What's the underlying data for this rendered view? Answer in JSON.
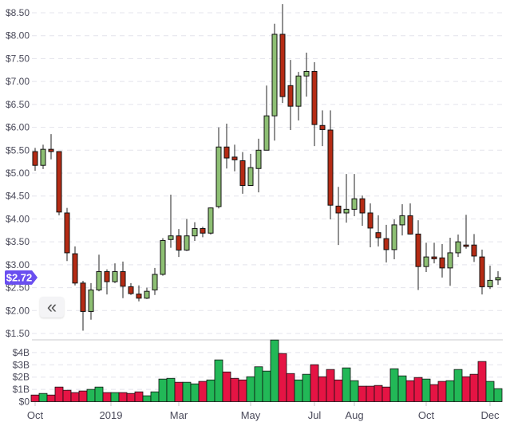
{
  "chart_data": {
    "type": "candlestick",
    "price_axis": {
      "ticks": [
        "$8.50",
        "$8.00",
        "$7.50",
        "$7.00",
        "$6.50",
        "$6.00",
        "$5.50",
        "$5.00",
        "$4.50",
        "$4.00",
        "$3.50",
        "$3.00",
        "$2.50",
        "$2.00",
        "$1.50"
      ],
      "ylim": [
        1.5,
        8.5
      ],
      "grid": true
    },
    "volume_axis": {
      "ticks": [
        "$4B",
        "$3B",
        "$2B",
        "$1B",
        "$0"
      ],
      "unit": "B"
    },
    "x_ticks": [
      {
        "label": "Oct",
        "at_index": 0
      },
      {
        "label": "2019",
        "at_index": 9.5
      },
      {
        "label": "Mar",
        "at_index": 18
      },
      {
        "label": "May",
        "at_index": 27
      },
      {
        "label": "Jul",
        "at_index": 35
      },
      {
        "label": "Aug",
        "at_index": 40
      },
      {
        "label": "Oct",
        "at_index": 49
      },
      {
        "label": "Dec",
        "at_index": 57
      }
    ],
    "candles": [
      [
        5.47,
        5.55,
        5.05,
        5.17
      ],
      [
        5.17,
        5.62,
        5.09,
        5.52
      ],
      [
        5.52,
        5.85,
        5.3,
        5.47
      ],
      [
        5.47,
        5.47,
        4.08,
        4.15
      ],
      [
        4.13,
        4.24,
        3.08,
        3.26
      ],
      [
        3.24,
        3.4,
        2.55,
        2.6
      ],
      [
        2.6,
        2.65,
        1.56,
        1.98
      ],
      [
        1.98,
        2.6,
        1.8,
        2.45
      ],
      [
        2.45,
        3.22,
        2.42,
        2.85
      ],
      [
        2.85,
        2.9,
        2.35,
        2.63
      ],
      [
        2.63,
        3.03,
        2.6,
        2.85
      ],
      [
        2.85,
        3.07,
        2.27,
        2.53
      ],
      [
        2.52,
        2.6,
        2.34,
        2.37
      ],
      [
        2.36,
        2.55,
        2.2,
        2.27
      ],
      [
        2.27,
        2.5,
        2.25,
        2.42
      ],
      [
        2.45,
        2.93,
        2.34,
        2.79
      ],
      [
        2.79,
        3.58,
        2.76,
        3.53
      ],
      [
        3.55,
        4.53,
        3.37,
        3.63
      ],
      [
        3.63,
        3.78,
        3.17,
        3.32
      ],
      [
        3.32,
        4.0,
        3.3,
        3.63
      ],
      [
        3.63,
        3.93,
        3.52,
        3.79
      ],
      [
        3.79,
        3.83,
        3.6,
        3.69
      ],
      [
        3.69,
        4.25,
        3.66,
        4.24
      ],
      [
        4.27,
        6.0,
        4.23,
        5.57
      ],
      [
        5.57,
        6.08,
        5.1,
        5.33
      ],
      [
        5.35,
        5.62,
        5.04,
        5.29
      ],
      [
        5.27,
        5.46,
        4.55,
        4.73
      ],
      [
        4.73,
        5.42,
        4.73,
        5.12
      ],
      [
        5.1,
        5.75,
        4.58,
        5.5
      ],
      [
        5.5,
        6.91,
        5.5,
        6.25
      ],
      [
        6.25,
        8.26,
        5.71,
        8.03
      ],
      [
        8.03,
        8.69,
        6.53,
        6.67
      ],
      [
        6.91,
        7.47,
        5.94,
        6.46
      ],
      [
        6.46,
        7.21,
        6.15,
        7.12
      ],
      [
        7.12,
        7.63,
        6.67,
        7.22
      ],
      [
        7.22,
        7.42,
        5.59,
        6.06
      ],
      [
        6.04,
        6.37,
        5.59,
        5.95
      ],
      [
        5.94,
        6.37,
        3.99,
        4.3
      ],
      [
        4.28,
        4.7,
        3.43,
        4.13
      ],
      [
        4.13,
        4.98,
        3.92,
        4.21
      ],
      [
        4.21,
        4.98,
        4.06,
        4.44
      ],
      [
        4.44,
        4.51,
        3.85,
        4.13
      ],
      [
        4.13,
        4.34,
        3.38,
        3.8
      ],
      [
        3.7,
        4.08,
        3.4,
        3.59
      ],
      [
        3.57,
        3.87,
        3.05,
        3.33
      ],
      [
        3.33,
        3.99,
        3.12,
        3.87
      ],
      [
        3.87,
        4.32,
        3.64,
        4.07
      ],
      [
        4.07,
        4.34,
        3.66,
        3.67
      ],
      [
        3.67,
        3.97,
        2.45,
        2.96
      ],
      [
        2.96,
        3.48,
        2.84,
        3.17
      ],
      [
        3.17,
        3.48,
        3.03,
        3.13
      ],
      [
        3.15,
        3.45,
        2.72,
        2.93
      ],
      [
        2.93,
        3.59,
        2.54,
        3.26
      ],
      [
        3.26,
        3.66,
        3.17,
        3.5
      ],
      [
        3.43,
        4.09,
        3.35,
        3.4
      ],
      [
        3.43,
        3.67,
        3.06,
        3.19
      ],
      [
        3.17,
        3.33,
        2.35,
        2.52
      ],
      [
        2.52,
        2.98,
        2.47,
        2.66
      ],
      [
        2.67,
        2.86,
        2.56,
        2.72
      ]
    ],
    "candle_fields": [
      "open",
      "high",
      "low",
      "close"
    ],
    "volumes_billions": [
      0.54,
      0.67,
      0.54,
      1.19,
      0.93,
      0.74,
      0.87,
      1.0,
      1.19,
      0.74,
      0.74,
      0.74,
      0.67,
      0.8,
      0.48,
      0.8,
      1.84,
      1.9,
      1.58,
      1.58,
      1.45,
      1.65,
      1.77,
      3.4,
      2.42,
      1.9,
      1.77,
      2.03,
      2.84,
      2.49,
      5.02,
      3.92,
      2.29,
      1.77,
      2.23,
      3.01,
      2.03,
      2.62,
      1.77,
      2.75,
      1.71,
      1.26,
      1.26,
      1.32,
      1.19,
      2.68,
      2.1,
      1.71,
      1.97,
      1.84,
      1.39,
      1.65,
      1.71,
      2.62,
      2.03,
      2.23,
      3.27,
      1.65,
      1.06
    ],
    "current_price": {
      "value": 2.72,
      "label": "$2.72"
    },
    "colors": {
      "candle_up": "#8dbf73",
      "candle_down": "#b52b14",
      "volume_up": "#22b857",
      "volume_down": "#e51444",
      "price_tag": "#6a4ff0",
      "grid": "#e4e4ec"
    }
  },
  "controls": {
    "scroll_back_label": "«"
  }
}
